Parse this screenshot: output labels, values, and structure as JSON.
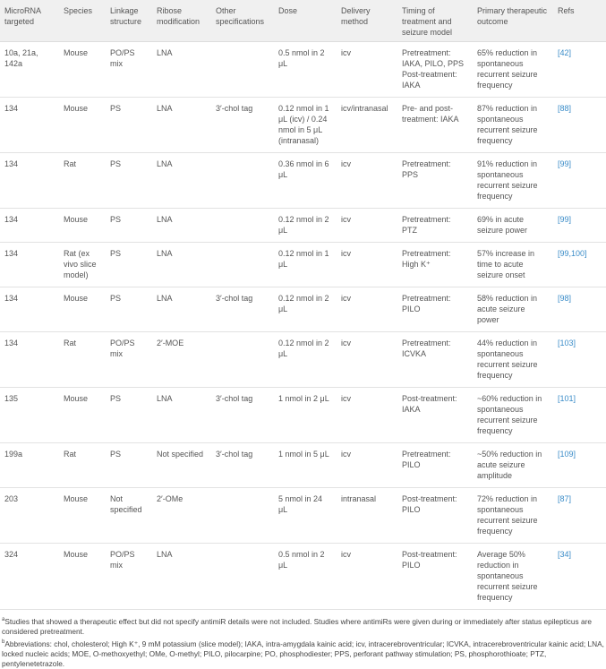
{
  "table": {
    "headers": [
      "MicroRNA targeted",
      "Species",
      "Linkage structure",
      "Ribose modification",
      "Other specifications",
      "Dose",
      "Delivery method",
      "Timing of treatment and seizure model",
      "Primary therapeutic outcome",
      "Refs"
    ],
    "rows": [
      [
        "10a, 21a, 142a",
        "Mouse",
        "PO/PS mix",
        "LNA",
        "",
        "0.5 nmol in 2 μL",
        "icv",
        "Pretreatment: IAKA, PILO, PPS Post-treatment: IAKA",
        "65% reduction in spontaneous recurrent seizure frequency",
        "[42]"
      ],
      [
        "134",
        "Mouse",
        "PS",
        "LNA",
        "3′-chol tag",
        "0.12 nmol in 1 μL (icv) / 0.24 nmol in 5 μL (intranasal)",
        "icv/intranasal",
        "Pre- and post-treatment: IAKA",
        "87% reduction in spontaneous recurrent seizure frequency",
        "[88]"
      ],
      [
        "134",
        "Rat",
        "PS",
        "LNA",
        "",
        "0.36 nmol in 6 μL",
        "icv",
        "Pretreatment: PPS",
        "91% reduction in spontaneous recurrent seizure frequency",
        "[99]"
      ],
      [
        "134",
        "Mouse",
        "PS",
        "LNA",
        "",
        "0.12 nmol in 2 μL",
        "icv",
        "Pretreatment: PTZ",
        "69% in acute seizure power",
        "[99]"
      ],
      [
        "134",
        "Rat (ex vivo slice model)",
        "PS",
        "LNA",
        "",
        "0.12 nmol in 1 μL",
        "icv",
        "Pretreatment: High K⁺",
        "57% increase in time to acute seizure onset",
        "[99,100]"
      ],
      [
        "134",
        "Mouse",
        "PS",
        "LNA",
        "3′-chol tag",
        "0.12 nmol in 2 μL",
        "icv",
        "Pretreatment: PILO",
        "58% reduction in acute seizure power",
        "[98]"
      ],
      [
        "134",
        "Rat",
        "PO/PS mix",
        "2′-MOE",
        "",
        "0.12 nmol in 2 μL",
        "icv",
        "Pretreatment: ICVKA",
        "44% reduction in spontaneous recurrent seizure frequency",
        "[103]"
      ],
      [
        "135",
        "Mouse",
        "PS",
        "LNA",
        "3′-chol tag",
        "1 nmol in 2 μL",
        "icv",
        "Post-treatment: IAKA",
        "~60% reduction in spontaneous recurrent seizure frequency",
        "[101]"
      ],
      [
        "199a",
        "Rat",
        "PS",
        "Not specified",
        "3′-chol tag",
        "1 nmol in 5 μL",
        "icv",
        "Pretreatment: PILO",
        "~50% reduction in acute seizure amplitude",
        "[109]"
      ],
      [
        "203",
        "Mouse",
        "Not specified",
        "2′-OMe",
        "",
        "5 nmol in 24 μL",
        "intranasal",
        "Post-treatment: PILO",
        "72% reduction in spontaneous recurrent seizure frequency",
        "[87]"
      ],
      [
        "324",
        "Mouse",
        "PO/PS mix",
        "LNA",
        "",
        "0.5 nmol in 2 μL",
        "icv",
        "Post-treatment: PILO",
        "Average 50% reduction in spontaneous recurrent seizure frequency",
        "[34]"
      ]
    ]
  },
  "footnotes": [
    {
      "marker": "a",
      "text": "Studies that showed a therapeutic effect but did not specify antimiR details were not included. Studies where antimiRs were given during or immediately after status epilepticus are considered pretreatment."
    },
    {
      "marker": "b",
      "text": "Abbreviations: chol, cholesterol; High K⁺, 9 mM potassium (slice model); IAKA, intra-amygdala kainic acid; icv, intracerebroventricular; ICVKA, intracerebroventricular kainic acid; LNA, locked nucleic acids; MOE, O-methoxyethyl; OMe, O-methyl; PILO, pilocarpine; PO, phosphodiester; PPS, perforant pathway stimulation; PS, phosphorothioate; PTZ, pentylenetetrazole."
    }
  ]
}
